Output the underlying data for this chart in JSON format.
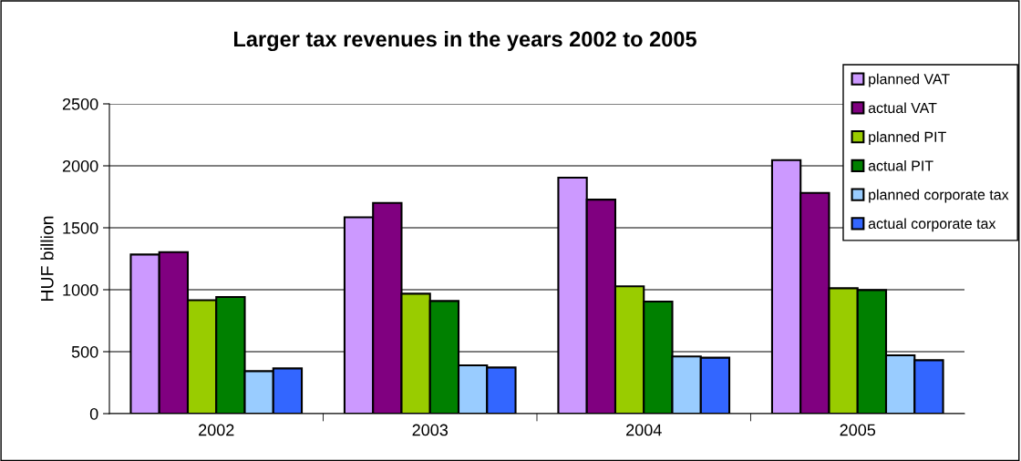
{
  "chart_data": {
    "type": "bar",
    "title": "Larger tax revenues in the years 2002 to 2005",
    "ylabel": "HUF billion",
    "categories": [
      "2002",
      "2003",
      "2004",
      "2005"
    ],
    "series": [
      {
        "name": "planned VAT",
        "color": "#cc99ff",
        "values": [
          1284,
          1585,
          1904,
          2046
        ]
      },
      {
        "name": "actual VAT",
        "color": "#800080",
        "values": [
          1303,
          1700,
          1727,
          1781
        ]
      },
      {
        "name": "planned PIT",
        "color": "#99cc00",
        "values": [
          916,
          968,
          1027,
          1012
        ]
      },
      {
        "name": "actual PIT",
        "color": "#008000",
        "values": [
          941,
          909,
          904,
          997
        ]
      },
      {
        "name": "planned corporate tax",
        "color": "#99ccff",
        "values": [
          343,
          390,
          461,
          470
        ]
      },
      {
        "name": "actual corporate tax",
        "color": "#3366ff",
        "values": [
          365,
          372,
          451,
          431
        ]
      }
    ],
    "ylim": [
      0,
      2500
    ],
    "yticks": [
      0,
      500,
      1000,
      1500,
      2000,
      2500
    ],
    "grid": "y",
    "legend": "top right"
  }
}
